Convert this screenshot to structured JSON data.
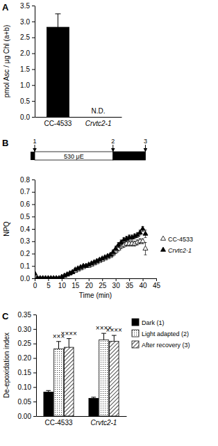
{
  "chart_data": [
    {
      "type": "bar",
      "title": "A",
      "y_label": "pmol Asc / μg Chl (a+b)",
      "categories": [
        "CC-4533",
        "Crvtc2-1"
      ],
      "values": [
        2.82,
        null
      ],
      "errors": [
        0.42,
        null
      ],
      "color": "#000000",
      "annotations": [
        {
          "text": "N.D.",
          "category": 1
        }
      ],
      "ylim": [
        0,
        3.5
      ],
      "yticks": [
        {
          "value": 0,
          "label": "0.0"
        },
        {
          "value": 0.5,
          "label": "0.5"
        },
        {
          "value": 1,
          "label": "1.0"
        },
        {
          "value": 1.5,
          "label": "1.5"
        },
        {
          "value": 2,
          "label": "2.0"
        },
        {
          "value": 2.5,
          "label": "2.5"
        },
        {
          "value": 3,
          "label": "3.0"
        },
        {
          "value": 3.5,
          "label": "3.5"
        }
      ]
    },
    {
      "type": "scatter",
      "title": "B",
      "x_label": "Time (min)",
      "y_label": "NPQ",
      "x": [
        0,
        1,
        2,
        3,
        4,
        5,
        6,
        7,
        8,
        9,
        10,
        11,
        12,
        13,
        14,
        15,
        16,
        17,
        18,
        19,
        20,
        21,
        22,
        23,
        24,
        25,
        26,
        27,
        28,
        29,
        30,
        31,
        32,
        33,
        34,
        35,
        36,
        37,
        38,
        39,
        40,
        41
      ],
      "series": [
        {
          "name": "CC-4533",
          "color": "#000000",
          "marker": "triangle-open",
          "values": [
            0.03,
            0,
            0,
            0,
            0,
            0,
            0,
            0,
            0,
            0,
            0.01,
            0.02,
            0.03,
            0.04,
            0.05,
            0.06,
            0.07,
            0.08,
            0.09,
            0.1,
            0.1,
            0.11,
            0.12,
            0.13,
            0.14,
            0.15,
            0.16,
            0.17,
            0.18,
            0.2,
            0.22,
            0.24,
            0.26,
            0.27,
            0.28,
            0.28,
            0.28,
            0.28,
            0.29,
            0.3,
            0.3,
            0.24
          ],
          "errors": [
            0.01,
            0.01,
            0.01,
            0.01,
            0.01,
            0.01,
            0.01,
            0.01,
            0.01,
            0.01,
            0.01,
            0.01,
            0.01,
            0.01,
            0.01,
            0.01,
            0.01,
            0.01,
            0.01,
            0.01,
            0.01,
            0.01,
            0.01,
            0.01,
            0.01,
            0.01,
            0.01,
            0.01,
            0.01,
            0.02,
            0.02,
            0.02,
            0.02,
            0.02,
            0.02,
            0.02,
            0.02,
            0.02,
            0.02,
            0.02,
            0.02,
            0.05
          ]
        },
        {
          "name": "Crvtc2-1",
          "color": "#000000",
          "marker": "triangle-filled",
          "values": [
            0.04,
            0,
            0,
            0,
            0,
            0,
            0,
            0,
            0,
            0,
            0.01,
            0.02,
            0.03,
            0.04,
            0.05,
            0.07,
            0.08,
            0.09,
            0.1,
            0.1,
            0.11,
            0.12,
            0.13,
            0.14,
            0.15,
            0.16,
            0.17,
            0.18,
            0.19,
            0.21,
            0.24,
            0.27,
            0.29,
            0.31,
            0.32,
            0.33,
            0.33,
            0.34,
            0.35,
            0.37,
            0.4,
            0.36
          ],
          "errors": [
            0.01,
            0.01,
            0.01,
            0.01,
            0.01,
            0.01,
            0.01,
            0.01,
            0.01,
            0.01,
            0.01,
            0.01,
            0.01,
            0.01,
            0.01,
            0.01,
            0.01,
            0.01,
            0.01,
            0.01,
            0.01,
            0.01,
            0.01,
            0.01,
            0.01,
            0.01,
            0.01,
            0.01,
            0.01,
            0.02,
            0.02,
            0.02,
            0.02,
            0.02,
            0.02,
            0.02,
            0.02,
            0.02,
            0.02,
            0.02,
            0.02,
            0.03
          ]
        }
      ],
      "legend": "right",
      "illumination": [
        {
          "start": 0,
          "end": 29,
          "light": true,
          "label": "530 μE"
        },
        {
          "start": 29,
          "end": 41,
          "light": false
        }
      ],
      "time_points": [
        {
          "value": 0,
          "label": "1"
        },
        {
          "value": 29,
          "label": "2"
        },
        {
          "value": 41,
          "label": "3"
        }
      ],
      "xlim": [
        0,
        45
      ],
      "xticks": [
        0,
        5,
        10,
        15,
        20,
        25,
        30,
        35,
        40,
        45
      ],
      "ylim": [
        0,
        0.8
      ],
      "yticks": [
        {
          "value": 0,
          "label": "0.0"
        },
        {
          "value": 0.1,
          "label": "0.1"
        },
        {
          "value": 0.2,
          "label": "0.2"
        },
        {
          "value": 0.3,
          "label": "0.3"
        },
        {
          "value": 0.4,
          "label": "0.4"
        },
        {
          "value": 0.5,
          "label": "0.5"
        },
        {
          "value": 0.6,
          "label": "0.6"
        },
        {
          "value": 0.7,
          "label": "0.7"
        },
        {
          "value": 0.8,
          "label": "0.8"
        }
      ]
    },
    {
      "type": "bar",
      "title": "C",
      "y_label": "De-epoxidation index",
      "categories": [
        "CC-4533",
        "Crvtc2-1"
      ],
      "series": [
        {
          "name": "Dark (1)",
          "color": "#000000",
          "values": [
            0.083,
            0.061
          ],
          "errors": [
            0.005,
            0.004
          ]
        },
        {
          "name": "Light adapted (2)",
          "color": "#ffffff",
          "values": [
            0.232,
            0.263
          ],
          "errors": [
            0.025,
            0.022
          ]
        },
        {
          "name": "After recovery (3)",
          "color": "#ffffff",
          "values": [
            0.237,
            0.258
          ],
          "errors": [
            0.03,
            0.02
          ]
        }
      ],
      "annotations": [
        {
          "text": "×××",
          "category": 0,
          "series": 1
        },
        {
          "text": "××××",
          "category": 0,
          "series": 2
        },
        {
          "text": "××××",
          "category": 1,
          "series": 1
        },
        {
          "text": "××××",
          "category": 1,
          "series": 2
        }
      ],
      "legend": "right",
      "ylim": [
        0,
        0.35
      ],
      "yticks": [
        {
          "value": 0,
          "label": "0.00"
        },
        {
          "value": 0.05,
          "label": "0.05"
        },
        {
          "value": 0.1,
          "label": "0.10"
        },
        {
          "value": 0.15,
          "label": "0.15"
        },
        {
          "value": 0.2,
          "label": "0.20"
        },
        {
          "value": 0.25,
          "label": "0.25"
        },
        {
          "value": 0.3,
          "label": "0.30"
        },
        {
          "value": 0.35,
          "label": "0.35"
        }
      ]
    }
  ]
}
